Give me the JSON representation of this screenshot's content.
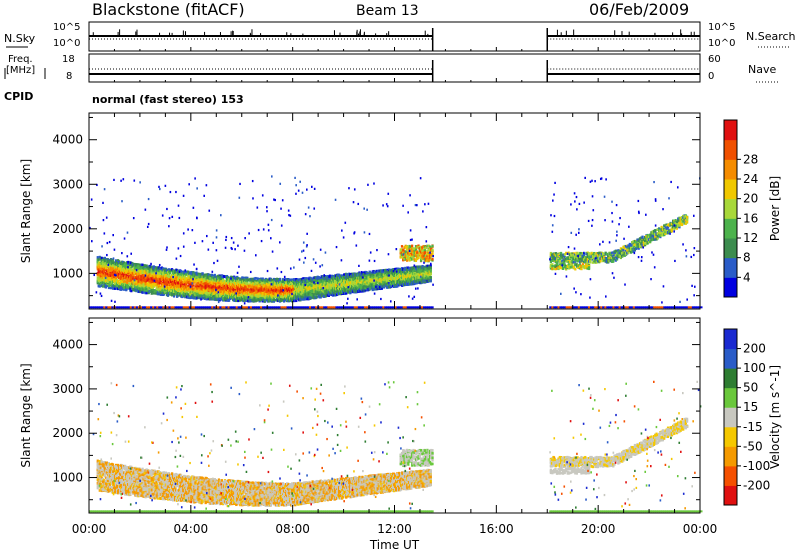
{
  "header": {
    "station": "Blackstone (fitACF)",
    "beam": "Beam 13",
    "date": "06/Feb/2009"
  },
  "panels": {
    "nsky": {
      "label": "N.Sky",
      "tick_top": "10^5",
      "tick_bot": "10^0",
      "right_label": "N.Search",
      "right_tick_top": "10^5",
      "right_tick_bot": "10^0"
    },
    "freq": {
      "label_1": "Freq.",
      "label_2": "[MHz]",
      "tick_top": "18",
      "tick_bot": "8",
      "right_label": "Nave",
      "right_tick_top": "60",
      "right_tick_bot": "0"
    },
    "cpid": {
      "label": "CPID",
      "value": "normal (fast stereo) 153"
    }
  },
  "colors": {
    "power": [
      "#0000e0",
      "#2a5cc8",
      "#3c8c4e",
      "#4cb24c",
      "#a8d83a",
      "#f0c800",
      "#f58c00",
      "#f05000",
      "#e01010"
    ],
    "velocity": [
      "#e01010",
      "#f55000",
      "#f59a00",
      "#f5c800",
      "#c8c8c0",
      "#6ac83c",
      "#2e7d32",
      "#2a5cc8",
      "#1a2ad0"
    ]
  },
  "chart_data": [
    {
      "type": "heatmap",
      "name": "power-panel",
      "xlabel": "Time UT",
      "ylabel": "Slant Range [km]",
      "xticks": [
        "00:00",
        "04:00",
        "08:00",
        "12:00",
        "16:00",
        "20:00",
        "00:00"
      ],
      "yticks": [
        1000,
        2000,
        3000,
        4000
      ],
      "ylim": [
        200,
        4600
      ],
      "colorbar_label": "Power [dB]",
      "colorbar_ticks": [
        4,
        8,
        12,
        16,
        20,
        24,
        28
      ],
      "data_gap_hours": [
        13.5,
        18.0
      ]
    },
    {
      "type": "heatmap",
      "name": "velocity-panel",
      "xlabel": "Time UT",
      "ylabel": "Slant Range [km]",
      "xticks": [
        "00:00",
        "04:00",
        "08:00",
        "12:00",
        "16:00",
        "20:00",
        "00:00"
      ],
      "yticks": [
        1000,
        2000,
        3000,
        4000
      ],
      "ylim": [
        200,
        4600
      ],
      "colorbar_label": "Velocity [m s^-1]",
      "colorbar_ticks": [
        -200,
        -100,
        -50,
        -15,
        15,
        50,
        100,
        200
      ],
      "colorbar_tick_labels": [
        "-200",
        "-100",
        "-50",
        "-15",
        "15",
        "50",
        "100",
        "200"
      ],
      "data_gap_hours": [
        13.5,
        18.0
      ]
    }
  ]
}
